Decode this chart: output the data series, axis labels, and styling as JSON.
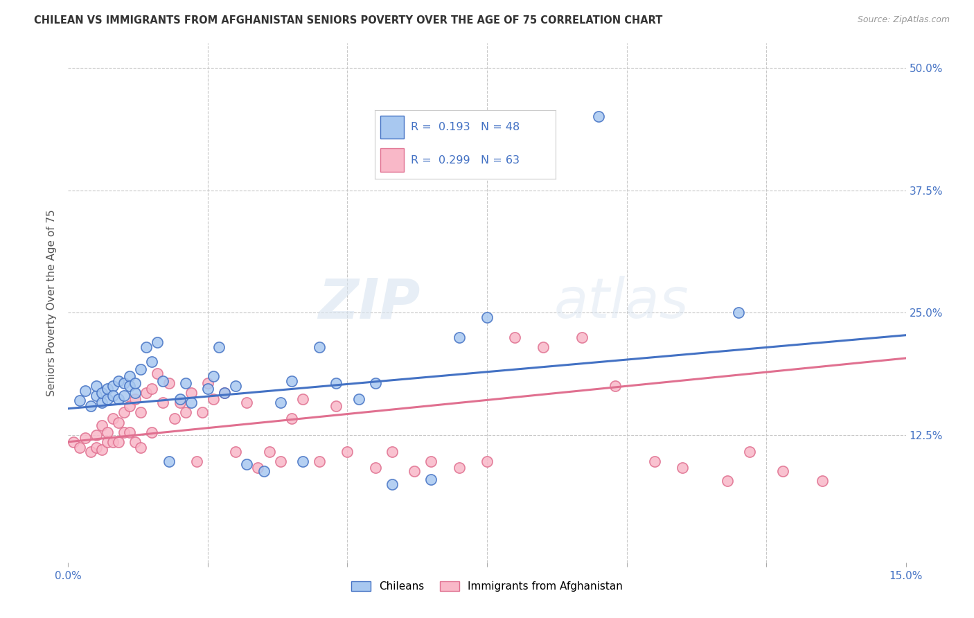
{
  "title": "CHILEAN VS IMMIGRANTS FROM AFGHANISTAN SENIORS POVERTY OVER THE AGE OF 75 CORRELATION CHART",
  "source": "Source: ZipAtlas.com",
  "ylabel_label": "Seniors Poverty Over the Age of 75",
  "xmin": 0.0,
  "xmax": 0.15,
  "ymin": -0.005,
  "ymax": 0.525,
  "chilean_R": 0.193,
  "chilean_N": 48,
  "afghan_R": 0.299,
  "afghan_N": 63,
  "chilean_color": "#a8c8f0",
  "chilean_line_color": "#4472c4",
  "afghan_color": "#f9b8c8",
  "afghan_line_color": "#e07090",
  "watermark_zip": "ZIP",
  "watermark_atlas": "atlas",
  "legend_label_1": "Chileans",
  "legend_label_2": "Immigrants from Afghanistan",
  "chilean_x": [
    0.002,
    0.003,
    0.004,
    0.005,
    0.005,
    0.006,
    0.006,
    0.007,
    0.007,
    0.008,
    0.008,
    0.009,
    0.009,
    0.01,
    0.01,
    0.011,
    0.011,
    0.012,
    0.012,
    0.013,
    0.014,
    0.015,
    0.016,
    0.017,
    0.018,
    0.02,
    0.021,
    0.022,
    0.025,
    0.026,
    0.027,
    0.028,
    0.03,
    0.032,
    0.035,
    0.038,
    0.04,
    0.042,
    0.045,
    0.048,
    0.052,
    0.055,
    0.058,
    0.065,
    0.07,
    0.075,
    0.095,
    0.12
  ],
  "chilean_y": [
    0.16,
    0.17,
    0.155,
    0.165,
    0.175,
    0.158,
    0.168,
    0.172,
    0.162,
    0.175,
    0.165,
    0.18,
    0.162,
    0.178,
    0.165,
    0.185,
    0.175,
    0.168,
    0.178,
    0.192,
    0.215,
    0.2,
    0.22,
    0.18,
    0.098,
    0.162,
    0.178,
    0.158,
    0.172,
    0.185,
    0.215,
    0.168,
    0.175,
    0.095,
    0.088,
    0.158,
    0.18,
    0.098,
    0.215,
    0.178,
    0.162,
    0.178,
    0.075,
    0.08,
    0.225,
    0.245,
    0.45,
    0.25
  ],
  "afghan_x": [
    0.001,
    0.002,
    0.003,
    0.004,
    0.005,
    0.005,
    0.006,
    0.006,
    0.007,
    0.007,
    0.008,
    0.008,
    0.009,
    0.009,
    0.01,
    0.01,
    0.011,
    0.011,
    0.012,
    0.012,
    0.013,
    0.013,
    0.014,
    0.015,
    0.015,
    0.016,
    0.017,
    0.018,
    0.019,
    0.02,
    0.021,
    0.022,
    0.023,
    0.024,
    0.025,
    0.026,
    0.028,
    0.03,
    0.032,
    0.034,
    0.036,
    0.038,
    0.04,
    0.042,
    0.045,
    0.048,
    0.05,
    0.055,
    0.058,
    0.062,
    0.065,
    0.07,
    0.075,
    0.08,
    0.085,
    0.092,
    0.098,
    0.105,
    0.11,
    0.118,
    0.122,
    0.128,
    0.135
  ],
  "afghan_y": [
    0.118,
    0.112,
    0.122,
    0.108,
    0.125,
    0.112,
    0.135,
    0.11,
    0.128,
    0.118,
    0.142,
    0.118,
    0.138,
    0.118,
    0.148,
    0.128,
    0.155,
    0.128,
    0.162,
    0.118,
    0.148,
    0.112,
    0.168,
    0.172,
    0.128,
    0.188,
    0.158,
    0.178,
    0.142,
    0.158,
    0.148,
    0.168,
    0.098,
    0.148,
    0.178,
    0.162,
    0.168,
    0.108,
    0.158,
    0.092,
    0.108,
    0.098,
    0.142,
    0.162,
    0.098,
    0.155,
    0.108,
    0.092,
    0.108,
    0.088,
    0.098,
    0.092,
    0.098,
    0.225,
    0.215,
    0.225,
    0.175,
    0.098,
    0.092,
    0.078,
    0.108,
    0.088,
    0.078
  ]
}
